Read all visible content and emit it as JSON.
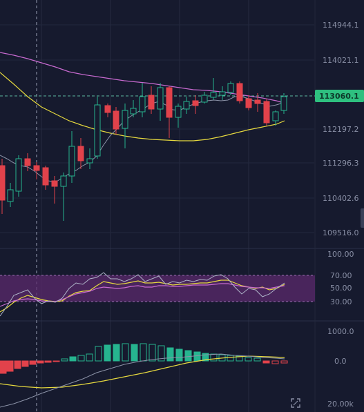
{
  "colors": {
    "background": "#161a2e",
    "up": "#26b48f",
    "down": "#e2424b",
    "ma_yellow": "#e6d93f",
    "ma_pink": "#c86ad0",
    "ma_gray": "#8c93a8",
    "rsi_band": "#5b2a6c",
    "label": "#8a90a6",
    "badge": "#2ec07f"
  },
  "price_axis": {
    "labels": [
      "114944.1",
      "114021.1",
      "112197.2",
      "111296.3",
      "110402.6",
      "109516.0"
    ],
    "current_price": "113060.1"
  },
  "rsi_axis": {
    "labels": [
      "100.00",
      "70.00",
      "50.00",
      "30.00"
    ]
  },
  "macd_axis": {
    "labels": [
      "1000.0",
      "0.0",
      "20.00k"
    ]
  },
  "icons": {
    "expand": "expand-icon"
  }
}
